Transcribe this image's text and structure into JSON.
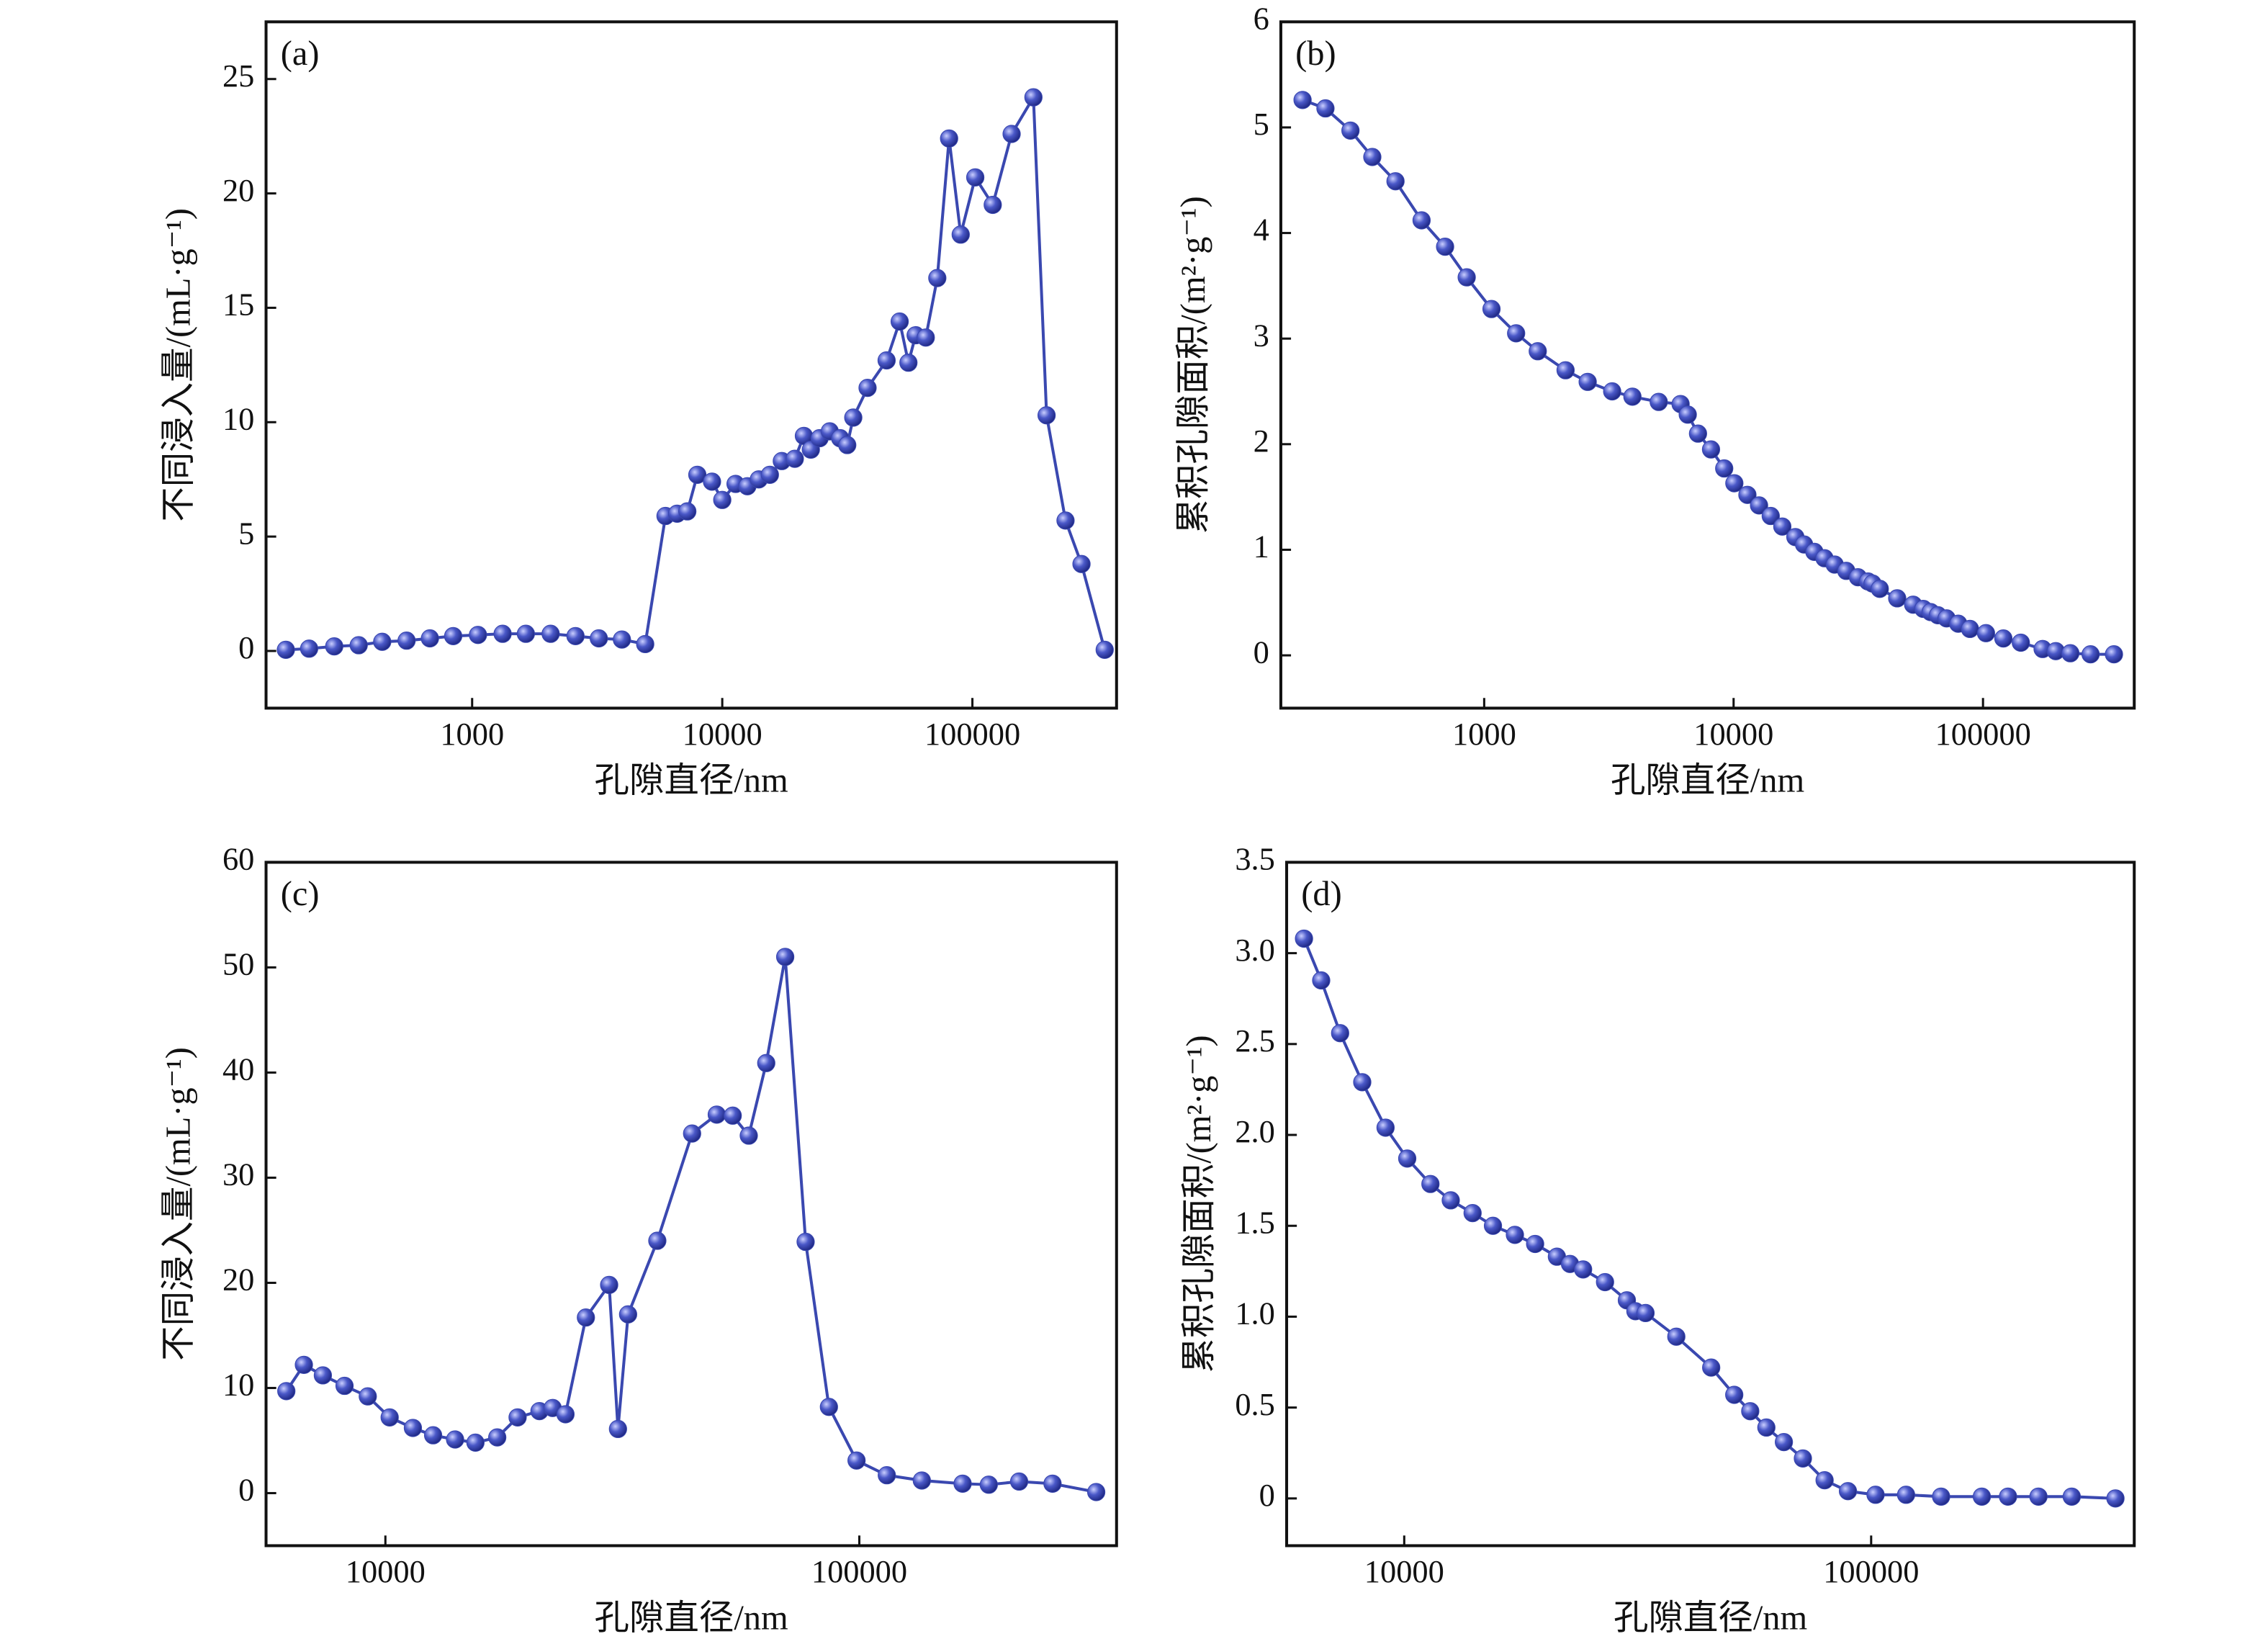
{
  "chart_data": [
    {
      "type": "line",
      "panel_label": "(a)",
      "xlabel": "孔隙直径/nm",
      "ylabel": "不同浸入量/(mL·g⁻¹)",
      "log_x": true,
      "color": "#3a48b0",
      "xlim": [
        150,
        377000
      ],
      "ylim": [
        -2.5,
        27.5
      ],
      "xticks": [
        1000,
        10000,
        100000
      ],
      "yticks": [
        0,
        5,
        10,
        15,
        20,
        25
      ],
      "x": [
        180,
        223,
        281,
        352,
        437,
        547,
        678,
        840,
        1055,
        1324,
        1640,
        2060,
        2590,
        3210,
        3970,
        4920,
        5930,
        6600,
        7250,
        7950,
        9100,
        10000,
        11300,
        12600,
        14000,
        15500,
        17300,
        19500,
        21200,
        22600,
        24500,
        26900,
        29600,
        31600,
        33400,
        38100,
        45400,
        51200,
        55500,
        59300,
        65100,
        72400,
        80700,
        89800,
        102700,
        120600,
        143500,
        175400,
        198000,
        235700,
        273000,
        338000
      ],
      "values": [
        0.05,
        0.1,
        0.2,
        0.25,
        0.4,
        0.45,
        0.55,
        0.65,
        0.7,
        0.75,
        0.75,
        0.75,
        0.65,
        0.55,
        0.5,
        0.3,
        5.9,
        6.0,
        6.1,
        7.7,
        7.4,
        6.6,
        7.3,
        7.2,
        7.5,
        7.7,
        8.3,
        8.4,
        9.4,
        8.8,
        9.3,
        9.6,
        9.3,
        9.0,
        10.2,
        11.5,
        12.7,
        14.4,
        12.6,
        13.8,
        13.7,
        16.3,
        22.4,
        18.2,
        20.7,
        19.5,
        22.6,
        24.2,
        10.3,
        5.7,
        3.8,
        0.05
      ]
    },
    {
      "type": "line",
      "panel_label": "(b)",
      "xlabel": "孔隙直径/nm",
      "ylabel": "累积孔隙面积/(m²·g⁻¹)",
      "log_x": true,
      "color": "#3a48b0",
      "xlim": [
        153,
        404000
      ],
      "ylim": [
        -0.5,
        6
      ],
      "xticks": [
        1000,
        10000,
        100000
      ],
      "yticks": [
        0,
        1,
        2,
        3,
        4,
        5,
        6
      ],
      "x": [
        187,
        231,
        291,
        356,
        441,
        561,
        697,
        851,
        1070,
        1343,
        1640,
        2120,
        2600,
        3260,
        3930,
        5010,
        6130,
        6550,
        7200,
        8120,
        9170,
        10070,
        11360,
        12650,
        14090,
        15680,
        17690,
        19170,
        21080,
        23140,
        25430,
        28300,
        31530,
        34600,
        36060,
        38550,
        45290,
        52480,
        57660,
        61660,
        65920,
        71450,
        79560,
        88650,
        102800,
        120700,
        141800,
        173400,
        195800,
        224000,
        270000,
        335000
      ],
      "values": [
        5.26,
        5.18,
        4.97,
        4.72,
        4.49,
        4.12,
        3.87,
        3.58,
        3.28,
        3.05,
        2.88,
        2.7,
        2.59,
        2.5,
        2.45,
        2.4,
        2.38,
        2.28,
        2.1,
        1.95,
        1.77,
        1.63,
        1.52,
        1.42,
        1.32,
        1.22,
        1.12,
        1.05,
        0.98,
        0.92,
        0.86,
        0.8,
        0.74,
        0.7,
        0.68,
        0.63,
        0.54,
        0.48,
        0.44,
        0.41,
        0.38,
        0.35,
        0.3,
        0.25,
        0.21,
        0.16,
        0.12,
        0.06,
        0.04,
        0.02,
        0.01,
        0.01
      ]
    },
    {
      "type": "line",
      "panel_label": "(c)",
      "xlabel": "孔隙直径/nm",
      "ylabel": "不同浸入量/(mL·g⁻¹)",
      "log_x": true,
      "color": "#3a48b0",
      "xlim": [
        5600,
        349000
      ],
      "ylim": [
        -5,
        60
      ],
      "xticks": [
        10000,
        100000
      ],
      "yticks": [
        0,
        10,
        20,
        30,
        40,
        50,
        60
      ],
      "x": [
        6180,
        6730,
        7380,
        8200,
        9180,
        10210,
        11430,
        12610,
        14030,
        15490,
        17220,
        19010,
        21140,
        22540,
        23990,
        26490,
        29660,
        30960,
        32520,
        37480,
        44380,
        50030,
        54060,
        58450,
        63630,
        69770,
        77050,
        86280,
        98670,
        114300,
        135500,
        165200,
        187600,
        217400,
        255700,
        316200
      ],
      "values": [
        9.7,
        12.2,
        11.2,
        10.2,
        9.2,
        7.2,
        6.2,
        5.5,
        5.1,
        4.8,
        5.3,
        7.2,
        7.8,
        8.1,
        7.5,
        16.7,
        19.8,
        6.1,
        17.0,
        24.0,
        34.2,
        36.0,
        35.9,
        34.0,
        40.9,
        51.0,
        23.9,
        8.2,
        3.1,
        1.7,
        1.2,
        0.9,
        0.8,
        1.1,
        0.9,
        0.1
      ]
    },
    {
      "type": "line",
      "panel_label": "(d)",
      "xlabel": "孔隙直径/nm",
      "ylabel": "累积孔隙面积/(m²·g⁻¹)",
      "log_x": true,
      "color": "#3a48b0",
      "xlim": [
        5600,
        366000
      ],
      "ylim": [
        -0.26,
        3.5
      ],
      "xticks": [
        10000,
        100000
      ],
      "yticks": [
        0,
        0.5,
        {
          "value": 1,
          "label": "1.0"
        },
        1.5,
        {
          "value": 2,
          "label": "2.0"
        },
        2.5,
        {
          "value": 3,
          "label": "3.0"
        },
        3.5
      ],
      "x": [
        6100,
        6640,
        7290,
        8130,
        9120,
        10150,
        11380,
        12580,
        14010,
        15490,
        17260,
        19070,
        21230,
        22650,
        24160,
        26920,
        29980,
        31270,
        32870,
        38260,
        45440,
        50910,
        55090,
        59650,
        65030,
        71420,
        79490,
        89190,
        102200,
        118800,
        141200,
        172600,
        196400,
        228200,
        268900,
        333600
      ],
      "values": [
        3.08,
        2.85,
        2.56,
        2.29,
        2.04,
        1.87,
        1.73,
        1.64,
        1.57,
        1.5,
        1.45,
        1.4,
        1.33,
        1.29,
        1.26,
        1.19,
        1.09,
        1.03,
        1.02,
        0.89,
        0.72,
        0.57,
        0.48,
        0.39,
        0.31,
        0.22,
        0.1,
        0.04,
        0.02,
        0.02,
        0.01,
        0.01,
        0.01,
        0.01,
        0.01,
        0.0
      ]
    }
  ]
}
